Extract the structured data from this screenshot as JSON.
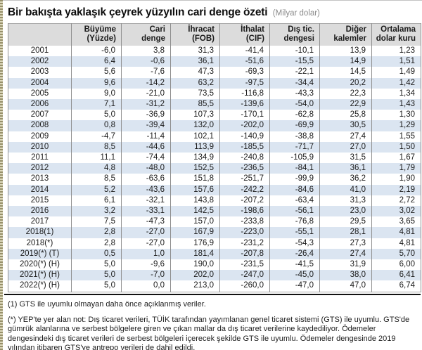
{
  "title": {
    "text": "Bir bakışta yaklaşık çeyrek yüzyılın cari denge özeti",
    "unit": "(Milyar dolar)"
  },
  "table": {
    "headers": [
      {
        "line1": "",
        "line2": ""
      },
      {
        "line1": "Büyüme",
        "line2": "(Yüzde)"
      },
      {
        "line1": "Cari",
        "line2": "denge"
      },
      {
        "line1": "İhracat",
        "line2": "(FOB)"
      },
      {
        "line1": "İthalat",
        "line2": "(CIF)"
      },
      {
        "line1": "Dış tic.",
        "line2": "dengesi"
      },
      {
        "line1": "Diğer",
        "line2": "kalemler"
      },
      {
        "line1": "Ortalama",
        "line2": "dolar kuru"
      }
    ],
    "rows": [
      [
        "2001",
        "-6,0",
        "3,8",
        "31,3",
        "-41,4",
        "-10,1",
        "13,9",
        "1,23"
      ],
      [
        "2002",
        "6,4",
        "-0,6",
        "36,1",
        "-51,6",
        "-15,5",
        "14,9",
        "1,51"
      ],
      [
        "2003",
        "5,6",
        "-7,6",
        "47,3",
        "-69,3",
        "-22,1",
        "14,5",
        "1,49"
      ],
      [
        "2004",
        "9,6",
        "-14,2",
        "63,2",
        "-97,5",
        "-34,4",
        "20,2",
        "1,42"
      ],
      [
        "2005",
        "9,0",
        "-21,0",
        "73,5",
        "-116,8",
        "-43,3",
        "22,3",
        "1,34"
      ],
      [
        "2006",
        "7,1",
        "-31,2",
        "85,5",
        "-139,6",
        "-54,0",
        "22,9",
        "1,43"
      ],
      [
        "2007",
        "5,0",
        "-36,9",
        "107,3",
        "-170,1",
        "-62,8",
        "25,8",
        "1,30"
      ],
      [
        "2008",
        "0,8",
        "-39,4",
        "132,0",
        "-202,0",
        "-69,9",
        "30,5",
        "1,29"
      ],
      [
        "2009",
        "-4,7",
        "-11,4",
        "102,1",
        "-140,9",
        "-38,8",
        "27,4",
        "1,55"
      ],
      [
        "2010",
        "8,5",
        "-44,6",
        "113,9",
        "-185,5",
        "-71,7",
        "27,0",
        "1,50"
      ],
      [
        "2011",
        "11,1",
        "-74,4",
        "134,9",
        "-240,8",
        "-105,9",
        "31,5",
        "1,67"
      ],
      [
        "2012",
        "4,8",
        "-48,0",
        "152,5",
        "-236,5",
        "-84,1",
        "36,1",
        "1,79"
      ],
      [
        "2013",
        "8,5",
        "-63,6",
        "151,8",
        "-251,7",
        "-99,9",
        "36,2",
        "1,90"
      ],
      [
        "2014",
        "5,2",
        "-43,6",
        "157,6",
        "-242,2",
        "-84,6",
        "41,0",
        "2,19"
      ],
      [
        "2015",
        "6,1",
        "-32,1",
        "143,8",
        "-207,2",
        "-63,4",
        "31,3",
        "2,72"
      ],
      [
        "2016",
        "3,2",
        "-33,1",
        "142,5",
        "-198,6",
        "-56,1",
        "23,0",
        "3,02"
      ],
      [
        "2017",
        "7,5",
        "-47,3",
        "157,0",
        "-233,8",
        "-76,8",
        "29,5",
        "3,65"
      ],
      [
        "2018(1)",
        "2,8",
        "-27,0",
        "167,9",
        "-223,0",
        "-55,1",
        "28,1",
        "4,81"
      ],
      [
        "2018(*)",
        "2,8",
        "-27,0",
        "176,9",
        "-231,2",
        "-54,3",
        "27,3",
        "4,81"
      ],
      [
        "2019(*) (T)",
        "0,5",
        "1,0",
        "181,4",
        "-207,8",
        "-26,4",
        "27,4",
        "5,70"
      ],
      [
        "2020(*) (H)",
        "5,0",
        "-9,6",
        "190,0",
        "-231,5",
        "-41,5",
        "31,9",
        "6,00"
      ],
      [
        "2021(*) (H)",
        "5,0",
        "-7,0",
        "202,0",
        "-247,0",
        "-45,0",
        "38,0",
        "6,41"
      ],
      [
        "2022(*) (H)",
        "5,0",
        "0,0",
        "213,0",
        "-260,0",
        "-47,0",
        "47,0",
        "6,74"
      ]
    ]
  },
  "footnotes": {
    "note1": "(1) GTS ile uyumlu olmayan daha önce açıklanmış veriler.",
    "note2": "(*) YEP'te yer alan not: Dış ticaret verileri, TÜİK tarafından yayımlanan genel ticaret sistemi (GTS) ile uyumlu. GTS'de gümrük alanlarına ve serbest bölgelere giren ve çıkan mallar da dış ticaret verilerine kaydediliyor. Ödemeler dengesindeki dış ticaret verileri de serbest bölgeleri içerecek şekilde GTS ile uyumlu. Ödemeler dengesinde 2019 yılından itibaren GTS'ye antrepo verileri de dahil edildi."
  },
  "colors": {
    "row_stripe": "#dbe5f1",
    "header_bg": "#dcdcdc",
    "border": "#8f8f8f",
    "separator": "#111111",
    "edge_strip_dark": "#97906a",
    "edge_strip_light": "#ddd9bd",
    "unit_text": "#8a8a8a"
  }
}
